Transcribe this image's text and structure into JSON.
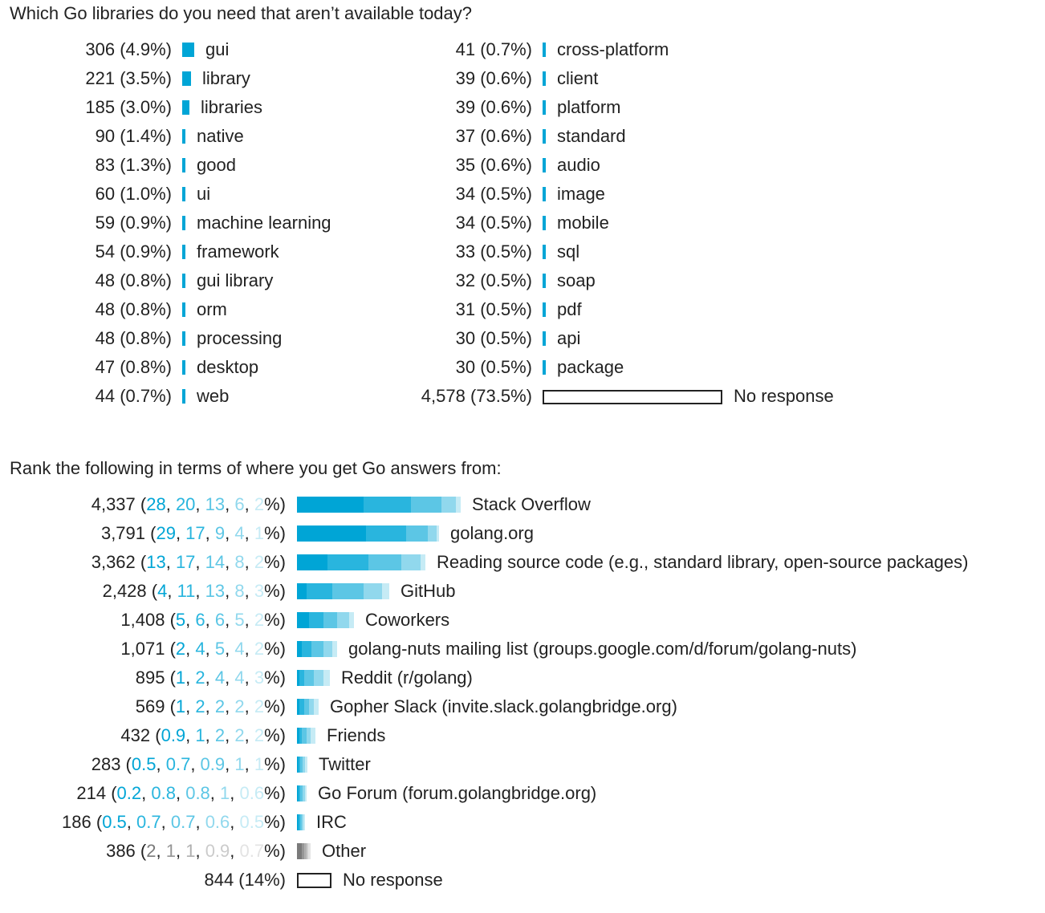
{
  "chart_data": [
    {
      "type": "bar",
      "title": "Which Go libraries do you need that aren’t available today?",
      "orientation": "horizontal",
      "columns": 2,
      "bar_color": "#00a5d6",
      "max_percent": 73.5,
      "items": [
        {
          "count": "306",
          "percent": 4.9,
          "label": "gui"
        },
        {
          "count": "221",
          "percent": 3.5,
          "label": "library"
        },
        {
          "count": "185",
          "percent": 3.0,
          "label": "libraries"
        },
        {
          "count": "90",
          "percent": 1.4,
          "label": "native"
        },
        {
          "count": "83",
          "percent": 1.3,
          "label": "good"
        },
        {
          "count": "60",
          "percent": 1.0,
          "label": "ui"
        },
        {
          "count": "59",
          "percent": 0.9,
          "label": "machine learning"
        },
        {
          "count": "54",
          "percent": 0.9,
          "label": "framework"
        },
        {
          "count": "48",
          "percent": 0.8,
          "label": "gui library"
        },
        {
          "count": "48",
          "percent": 0.8,
          "label": "orm"
        },
        {
          "count": "48",
          "percent": 0.8,
          "label": "processing"
        },
        {
          "count": "47",
          "percent": 0.8,
          "label": "desktop"
        },
        {
          "count": "44",
          "percent": 0.7,
          "label": "web"
        },
        {
          "count": "41",
          "percent": 0.7,
          "label": "cross-platform"
        },
        {
          "count": "39",
          "percent": 0.6,
          "label": "client"
        },
        {
          "count": "39",
          "percent": 0.6,
          "label": "platform"
        },
        {
          "count": "37",
          "percent": 0.6,
          "label": "standard"
        },
        {
          "count": "35",
          "percent": 0.6,
          "label": "audio"
        },
        {
          "count": "34",
          "percent": 0.5,
          "label": "image"
        },
        {
          "count": "34",
          "percent": 0.5,
          "label": "mobile"
        },
        {
          "count": "33",
          "percent": 0.5,
          "label": "sql"
        },
        {
          "count": "32",
          "percent": 0.5,
          "label": "soap"
        },
        {
          "count": "31",
          "percent": 0.5,
          "label": "pdf"
        },
        {
          "count": "30",
          "percent": 0.5,
          "label": "api"
        },
        {
          "count": "30",
          "percent": 0.5,
          "label": "package"
        },
        {
          "count": "4,578",
          "percent": 73.5,
          "label": "No response",
          "no_response": true
        }
      ]
    },
    {
      "type": "bar",
      "stacked": true,
      "title": "Rank the following in terms of where you get Go answers from:",
      "orientation": "horizontal",
      "rank_colors": [
        "#00a5d6",
        "#29b5de",
        "#5cc6e5",
        "#91d8ed",
        "#c6ebf5"
      ],
      "other_colors": [
        "#7a7a7a",
        "#969696",
        "#b0b0b0",
        "#cbcbcb",
        "#e3e3e3"
      ],
      "scale_max_percent": 71,
      "items": [
        {
          "count": "4,337",
          "ranks": [
            28,
            20,
            13,
            6,
            2
          ],
          "rank_labels": [
            "28",
            "20",
            "13",
            "6",
            "2"
          ],
          "label": "Stack Overflow"
        },
        {
          "count": "3,791",
          "ranks": [
            29,
            17,
            9,
            4,
            1
          ],
          "rank_labels": [
            "29",
            "17",
            "9",
            "4",
            "1"
          ],
          "label": "golang.org"
        },
        {
          "count": "3,362",
          "ranks": [
            13,
            17,
            14,
            8,
            2
          ],
          "rank_labels": [
            "13",
            "17",
            "14",
            "8",
            "2"
          ],
          "label": "Reading source code (e.g., standard library, open-source packages)"
        },
        {
          "count": "2,428",
          "ranks": [
            4,
            11,
            13,
            8,
            3
          ],
          "rank_labels": [
            "4",
            "11",
            "13",
            "8",
            "3"
          ],
          "label": "GitHub"
        },
        {
          "count": "1,408",
          "ranks": [
            5,
            6,
            6,
            5,
            2
          ],
          "rank_labels": [
            "5",
            "6",
            "6",
            "5",
            "2"
          ],
          "label": "Coworkers"
        },
        {
          "count": "1,071",
          "ranks": [
            2,
            4,
            5,
            4,
            2
          ],
          "rank_labels": [
            "2",
            "4",
            "5",
            "4",
            "2"
          ],
          "label": "golang-nuts mailing list (groups.google.com/d/forum/golang-nuts)"
        },
        {
          "count": "895",
          "ranks": [
            1,
            2,
            4,
            4,
            3
          ],
          "rank_labels": [
            "1",
            "2",
            "4",
            "4",
            "3"
          ],
          "label": "Reddit (r/golang)"
        },
        {
          "count": "569",
          "ranks": [
            1,
            2,
            2,
            2,
            2
          ],
          "rank_labels": [
            "1",
            "2",
            "2",
            "2",
            "2"
          ],
          "label": "Gopher Slack (invite.slack.golangbridge.org)"
        },
        {
          "count": "432",
          "ranks": [
            0.9,
            1,
            2,
            2,
            2
          ],
          "rank_labels": [
            "0.9",
            "1",
            "2",
            "2",
            "2"
          ],
          "label": "Friends"
        },
        {
          "count": "283",
          "ranks": [
            0.5,
            0.7,
            0.9,
            1,
            1
          ],
          "rank_labels": [
            "0.5",
            "0.7",
            "0.9",
            "1",
            "1"
          ],
          "label": "Twitter"
        },
        {
          "count": "214",
          "ranks": [
            0.2,
            0.8,
            0.8,
            1,
            0.6
          ],
          "rank_labels": [
            "0.2",
            "0.8",
            "0.8",
            "1",
            "0.6"
          ],
          "label": "Go Forum (forum.golangbridge.org)"
        },
        {
          "count": "186",
          "ranks": [
            0.5,
            0.7,
            0.7,
            0.6,
            0.5
          ],
          "rank_labels": [
            "0.5",
            "0.7",
            "0.7",
            "0.6",
            "0.5"
          ],
          "label": "IRC"
        },
        {
          "count": "386",
          "ranks": [
            2,
            1,
            1,
            0.9,
            0.7
          ],
          "rank_labels": [
            "2",
            "1",
            "1",
            "0.9",
            "0.7"
          ],
          "label": "Other",
          "gray": true
        },
        {
          "count": "844",
          "percent_label": "14",
          "percent": 14,
          "label": "No response",
          "no_response": true
        }
      ]
    }
  ]
}
